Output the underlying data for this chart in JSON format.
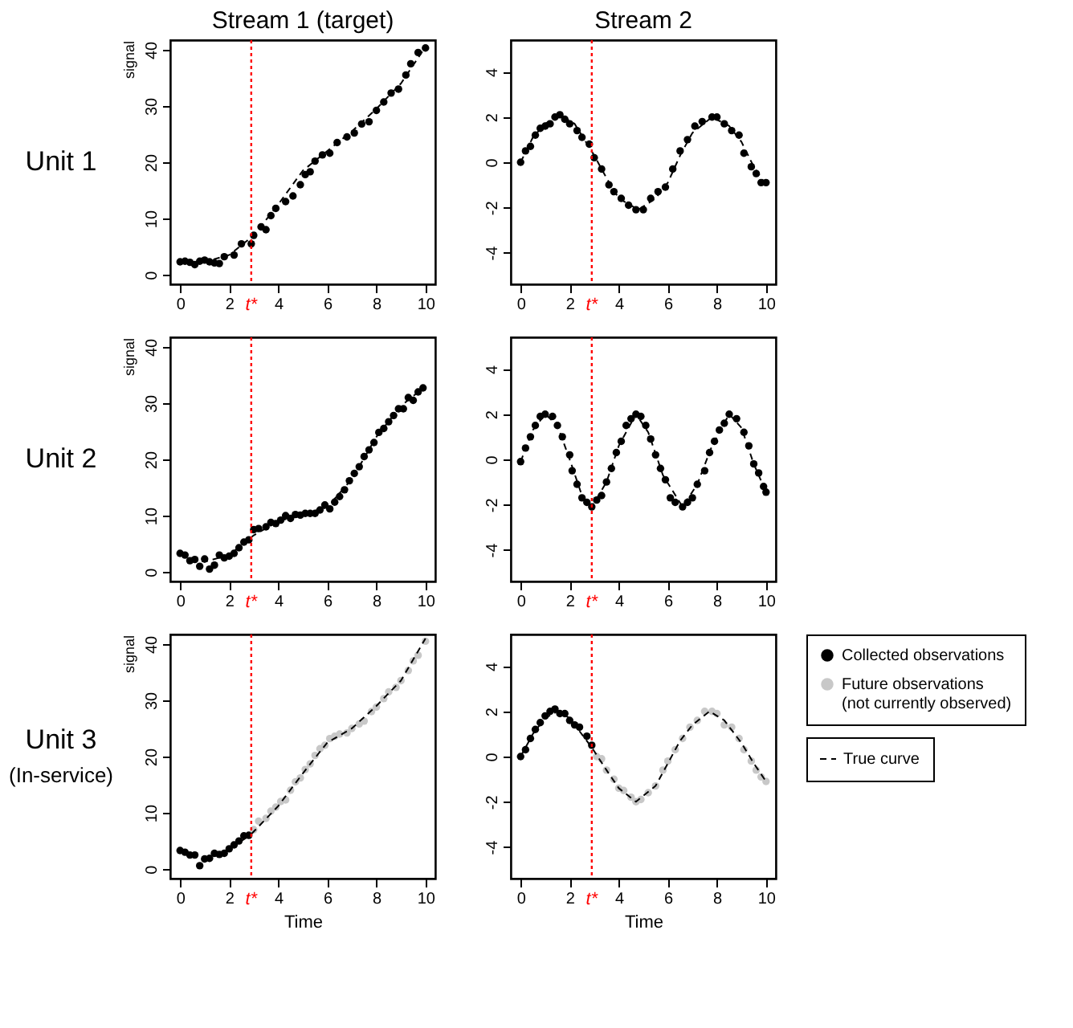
{
  "chart_data": [
    {
      "type": "scatter",
      "title": "Stream 1 (target)",
      "ylabel": "signal",
      "annotations": [
        "Unit 1"
      ],
      "xlim": [
        -0.4,
        10.4
      ],
      "xticks": [
        0,
        2,
        4,
        6,
        8,
        10
      ],
      "ylim": [
        -1.7,
        41.7
      ],
      "yticks": [
        0,
        10,
        20,
        30,
        40
      ],
      "grid": false,
      "marker": "circle",
      "ref_lines": [
        {
          "axis": "x",
          "value": 2.9,
          "label": "t*",
          "color": "#ff0000",
          "line_style": "dotted"
        }
      ],
      "series": [
        {
          "color": "#000000",
          "x": [
            0,
            0.2,
            0.4,
            0.6,
            0.8,
            1.0,
            1.2,
            1.4,
            1.6,
            1.8,
            2.2,
            2.5,
            2.9,
            3.0,
            3.3,
            3.5,
            3.7,
            3.9,
            4.3,
            4.6,
            4.9,
            5.1,
            5.3,
            5.5,
            5.8,
            6.1,
            6.4,
            6.8,
            7.1,
            7.4,
            7.7,
            8.0,
            8.3,
            8.6,
            8.9,
            9.2,
            9.4,
            9.7,
            10
          ],
          "values": [
            2.3,
            2.4,
            2.2,
            1.8,
            2.4,
            2.6,
            2.3,
            2.1,
            2.0,
            3.2,
            3.5,
            5.5,
            5.5,
            7,
            8.5,
            8,
            10.5,
            11.8,
            13,
            14,
            16,
            17.8,
            18.3,
            20.2,
            21.3,
            21.6,
            23.5,
            24.5,
            25.2,
            26.8,
            27.2,
            29.2,
            30.7,
            32.3,
            33.0,
            35.5,
            37.5,
            39.5,
            40.3
          ]
        },
        {
          "type": "line",
          "marker": "none",
          "line_style": "dashed",
          "color": "#000000",
          "x": [
            0,
            1,
            2,
            3,
            4,
            5,
            6,
            7,
            8,
            9,
            10
          ],
          "values": [
            2.3,
            2.3,
            3.5,
            7,
            12.5,
            18.5,
            22,
            25.5,
            29.5,
            34,
            40.5
          ]
        }
      ]
    },
    {
      "type": "scatter",
      "title": "Stream 2",
      "xlim": [
        -0.4,
        10.4
      ],
      "xticks": [
        0,
        2,
        4,
        6,
        8,
        10
      ],
      "ylim": [
        -5.4,
        5.4
      ],
      "yticks": [
        -4,
        -2,
        0,
        2,
        4
      ],
      "grid": false,
      "marker": "circle",
      "ref_lines": [
        {
          "axis": "x",
          "value": 2.9,
          "label": "t*",
          "color": "#ff0000",
          "line_style": "dotted"
        }
      ],
      "series": [
        {
          "color": "#000000",
          "x": [
            0,
            0.2,
            0.4,
            0.6,
            0.8,
            1.0,
            1.2,
            1.4,
            1.6,
            1.8,
            2.0,
            2.3,
            2.5,
            2.8,
            3.0,
            3.3,
            3.6,
            3.8,
            4.1,
            4.4,
            4.7,
            5.0,
            5.3,
            5.6,
            5.9,
            6.2,
            6.5,
            6.8,
            7.1,
            7.4,
            7.8,
            8.0,
            8.3,
            8.6,
            8.9,
            9.1,
            9.4,
            9.6,
            9.8,
            10
          ],
          "values": [
            0,
            0.5,
            0.7,
            1.2,
            1.5,
            1.6,
            1.7,
            2.0,
            2.1,
            1.9,
            1.7,
            1.4,
            1.1,
            0.8,
            0.2,
            -0.3,
            -1.0,
            -1.3,
            -1.6,
            -1.9,
            -2.1,
            -2.1,
            -1.6,
            -1.3,
            -1.1,
            -0.3,
            0.5,
            1.0,
            1.6,
            1.8,
            2.0,
            2.0,
            1.7,
            1.4,
            1.2,
            0.4,
            -0.2,
            -0.5,
            -0.9,
            -0.9
          ]
        },
        {
          "type": "line",
          "marker": "none",
          "line_style": "dashed",
          "color": "#000000",
          "x": [
            0,
            0.5,
            1,
            1.6,
            2.2,
            3,
            3.5,
            4,
            4.8,
            5.5,
            6,
            6.5,
            7,
            7.8,
            8.5,
            9,
            9.5,
            10
          ],
          "values": [
            0,
            1.1,
            1.7,
            2.1,
            1.7,
            0.3,
            -0.7,
            -1.6,
            -2.1,
            -1.6,
            -0.9,
            0.3,
            1.3,
            2.0,
            1.6,
            0.9,
            -0.2,
            -1.0
          ]
        }
      ]
    },
    {
      "type": "scatter",
      "ylabel": "signal",
      "annotations": [
        "Unit 2"
      ],
      "xlim": [
        -0.4,
        10.4
      ],
      "xticks": [
        0,
        2,
        4,
        6,
        8,
        10
      ],
      "ylim": [
        -1.7,
        41.7
      ],
      "yticks": [
        0,
        10,
        20,
        30,
        40
      ],
      "grid": false,
      "marker": "circle",
      "ref_lines": [
        {
          "axis": "x",
          "value": 2.9,
          "label": "t*",
          "color": "#ff0000",
          "line_style": "dotted"
        }
      ],
      "series": [
        {
          "color": "#000000",
          "x": [
            0,
            0.2,
            0.4,
            0.6,
            0.8,
            1.0,
            1.2,
            1.4,
            1.6,
            1.8,
            2.0,
            2.2,
            2.4,
            2.6,
            2.8,
            3.0,
            3.2,
            3.5,
            3.7,
            3.9,
            4.1,
            4.3,
            4.5,
            4.7,
            4.9,
            5.1,
            5.3,
            5.5,
            5.7,
            5.9,
            6.1,
            6.3,
            6.5,
            6.7,
            6.9,
            7.1,
            7.3,
            7.5,
            7.7,
            7.9,
            8.1,
            8.3,
            8.5,
            8.7,
            8.9,
            9.1,
            9.3,
            9.5,
            9.7,
            9.9
          ],
          "values": [
            3.3,
            3.0,
            2.0,
            2.2,
            1.0,
            2.3,
            0.5,
            1.2,
            3.0,
            2.5,
            2.8,
            3.3,
            4.3,
            5.3,
            5.7,
            7.5,
            7.7,
            8.0,
            8.8,
            8.6,
            9.2,
            10.0,
            9.5,
            10.2,
            10.1,
            10.4,
            10.4,
            10.4,
            11.0,
            11.9,
            11.2,
            12.4,
            13.4,
            14.6,
            16.2,
            17.5,
            18.7,
            20.5,
            21.7,
            23.0,
            24.8,
            25.5,
            26.7,
            27.8,
            29.0,
            29.0,
            31.0,
            30.5,
            32.0,
            32.7
          ]
        },
        {
          "type": "line",
          "marker": "none",
          "line_style": "dashed",
          "color": "#000000",
          "x": [
            0,
            1,
            2,
            3,
            4,
            5,
            6,
            7,
            8,
            9,
            10
          ],
          "values": [
            3,
            1.8,
            3,
            6.5,
            9,
            10.2,
            11.5,
            16.5,
            24,
            29.5,
            33
          ]
        }
      ]
    },
    {
      "type": "scatter",
      "xlim": [
        -0.4,
        10.4
      ],
      "xticks": [
        0,
        2,
        4,
        6,
        8,
        10
      ],
      "ylim": [
        -5.4,
        5.4
      ],
      "yticks": [
        -4,
        -2,
        0,
        2,
        4
      ],
      "grid": false,
      "marker": "circle",
      "ref_lines": [
        {
          "axis": "x",
          "value": 2.9,
          "label": "t*",
          "color": "#ff0000",
          "line_style": "dotted"
        }
      ],
      "series": [
        {
          "color": "#000000",
          "x": [
            0,
            0.2,
            0.4,
            0.6,
            0.8,
            1.0,
            1.3,
            1.5,
            1.7,
            2.0,
            2.1,
            2.3,
            2.5,
            2.7,
            2.9,
            3.1,
            3.3,
            3.5,
            3.7,
            3.9,
            4.1,
            4.3,
            4.5,
            4.7,
            4.9,
            5.1,
            5.3,
            5.5,
            5.7,
            5.9,
            6.1,
            6.3,
            6.6,
            6.8,
            7.0,
            7.2,
            7.5,
            7.7,
            7.9,
            8.1,
            8.3,
            8.5,
            8.8,
            9.1,
            9.3,
            9.5,
            9.7,
            9.9,
            10
          ],
          "values": [
            -0.1,
            0.5,
            1.0,
            1.5,
            1.9,
            2.0,
            1.9,
            1.5,
            1.0,
            0.2,
            -0.5,
            -1.1,
            -1.7,
            -1.9,
            -2.1,
            -1.8,
            -1.6,
            -1.0,
            -0.4,
            0.3,
            0.8,
            1.5,
            1.8,
            2.0,
            1.9,
            1.5,
            0.9,
            0.2,
            -0.4,
            -0.9,
            -1.7,
            -1.9,
            -2.1,
            -1.9,
            -1.7,
            -1.1,
            -0.5,
            0.3,
            0.8,
            1.3,
            1.6,
            2.0,
            1.8,
            1.2,
            0.6,
            -0.2,
            -0.6,
            -1.2,
            -1.45
          ]
        },
        {
          "type": "line",
          "marker": "none",
          "line_style": "dashed",
          "color": "#000000",
          "x": [
            0,
            0.5,
            1.0,
            1.5,
            2.0,
            2.5,
            2.9,
            3.5,
            4.0,
            4.7,
            5.2,
            5.8,
            6.6,
            7.2,
            7.8,
            8.5,
            9.0,
            9.5,
            10
          ],
          "values": [
            -0.1,
            1.3,
            2.0,
            1.5,
            0.0,
            -1.6,
            -2.1,
            -1.0,
            0.6,
            2.0,
            1.2,
            -0.7,
            -2.1,
            -1.1,
            0.6,
            2.0,
            1.4,
            -0.2,
            -1.45
          ]
        }
      ]
    },
    {
      "type": "scatter",
      "xlabel": "Time",
      "ylabel": "signal",
      "annotations": [
        "Unit 3",
        "(In-service)"
      ],
      "xlim": [
        -0.4,
        10.4
      ],
      "xticks": [
        0,
        2,
        4,
        6,
        8,
        10
      ],
      "ylim": [
        -1.7,
        41.7
      ],
      "yticks": [
        0,
        10,
        20,
        30,
        40
      ],
      "grid": false,
      "marker": "circle",
      "ref_lines": [
        {
          "axis": "x",
          "value": 2.9,
          "label": "t*",
          "color": "#ff0000",
          "line_style": "dotted"
        }
      ],
      "series": [
        {
          "color": "#000000",
          "x": [
            0,
            0.2,
            0.4,
            0.6,
            0.8,
            1.0,
            1.2,
            1.4,
            1.6,
            1.8,
            2.0,
            2.2,
            2.4,
            2.6,
            2.8
          ],
          "values": [
            3.3,
            3.0,
            2.5,
            2.5,
            0.6,
            1.8,
            1.9,
            2.8,
            2.6,
            2.8,
            3.6,
            4.3,
            5.0,
            5.9,
            6.0
          ]
        },
        {
          "color": "#c8c8c8",
          "x": [
            3.0,
            3.2,
            3.5,
            3.7,
            3.9,
            4.1,
            4.3,
            4.5,
            4.7,
            4.9,
            5.1,
            5.3,
            5.5,
            5.7,
            5.9,
            6.1,
            6.3,
            6.5,
            6.8,
            7.0,
            7.3,
            7.5,
            7.8,
            8.0,
            8.3,
            8.5,
            8.8,
            9.0,
            9.3,
            9.5,
            9.7,
            10
          ],
          "values": [
            7.0,
            8.5,
            9.0,
            10.3,
            11.0,
            12.0,
            12.3,
            14.0,
            15.5,
            16.2,
            17.7,
            18.7,
            20.2,
            21.4,
            22.0,
            23.2,
            23.6,
            24.0,
            24.2,
            25.0,
            25.8,
            26.3,
            28.0,
            28.8,
            30.3,
            31.5,
            32.3,
            33.5,
            35.3,
            37.0,
            38.0,
            40.5
          ]
        },
        {
          "type": "line",
          "marker": "none",
          "line_style": "dashed",
          "color": "#000000",
          "x": [
            0,
            0.8,
            1.5,
            2,
            2.9,
            4,
            5,
            6,
            7,
            8,
            9,
            10
          ],
          "values": [
            3,
            2.0,
            2.4,
            3.5,
            6.2,
            11.2,
            17,
            22.5,
            25,
            29,
            33.5,
            41
          ]
        }
      ]
    },
    {
      "type": "scatter",
      "xlabel": "Time",
      "xlim": [
        -0.4,
        10.4
      ],
      "xticks": [
        0,
        2,
        4,
        6,
        8,
        10
      ],
      "ylim": [
        -5.4,
        5.4
      ],
      "yticks": [
        -4,
        -2,
        0,
        2,
        4
      ],
      "grid": false,
      "marker": "circle",
      "legend": "right",
      "ref_lines": [
        {
          "axis": "x",
          "value": 2.9,
          "label": "t*",
          "color": "#ff0000",
          "line_style": "dotted"
        }
      ],
      "series": [
        {
          "name": "Collected observations",
          "color": "#000000",
          "x": [
            0,
            0.2,
            0.4,
            0.6,
            0.8,
            1.0,
            1.2,
            1.4,
            1.6,
            1.8,
            2.0,
            2.2,
            2.4,
            2.7,
            2.9
          ],
          "values": [
            0,
            0.3,
            0.8,
            1.2,
            1.5,
            1.8,
            2.0,
            2.1,
            1.9,
            1.9,
            1.6,
            1.4,
            1.3,
            0.9,
            0.5
          ]
        },
        {
          "name": "Future observations\n(not currently observed)",
          "color": "#c8c8c8",
          "x": [
            3.1,
            3.3,
            3.5,
            3.8,
            4.0,
            4.2,
            4.5,
            4.7,
            4.9,
            5.2,
            5.5,
            5.8,
            6.0,
            6.3,
            6.6,
            6.9,
            7.2,
            7.5,
            7.8,
            8.0,
            8.3,
            8.6,
            8.9,
            9.1,
            9.4,
            9.6,
            9.8,
            10
          ],
          "values": [
            0.0,
            -0.1,
            -0.6,
            -1.0,
            -1.4,
            -1.5,
            -1.8,
            -2.0,
            -1.9,
            -1.6,
            -1.3,
            -0.6,
            -0.2,
            0.3,
            0.8,
            1.3,
            1.6,
            2.0,
            2.0,
            1.9,
            1.4,
            1.3,
            0.8,
            0.3,
            -0.2,
            -0.6,
            -0.9,
            -1.1
          ]
        },
        {
          "name": "True curve",
          "type": "line",
          "marker": "none",
          "line_style": "dashed",
          "color": "#000000",
          "x": [
            0,
            0.5,
            1.0,
            1.5,
            2.0,
            2.9,
            3.5,
            4.0,
            4.7,
            5.5,
            6.0,
            6.5,
            7.0,
            7.7,
            8.3,
            9.0,
            9.5,
            10
          ],
          "values": [
            0,
            1.0,
            1.7,
            2.0,
            1.7,
            0.4,
            -0.6,
            -1.4,
            -2.0,
            -1.3,
            -0.3,
            0.7,
            1.4,
            2.0,
            1.6,
            0.6,
            -0.3,
            -1.1
          ]
        }
      ]
    }
  ]
}
